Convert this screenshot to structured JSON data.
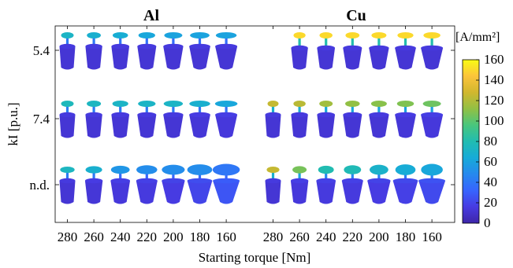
{
  "chart_data": {
    "type": "heatmap",
    "panels": [
      {
        "title": "Al",
        "x_ticks": [
          "280",
          "260",
          "240",
          "220",
          "200",
          "180",
          "160"
        ],
        "rows": [
          {
            "y_label": "5.4",
            "top_density": [
              72,
              68,
              66,
              62,
              60,
              60,
              60
            ],
            "bottom_density": [
              12,
              12,
              12,
              12,
              12,
              12,
              12
            ]
          },
          {
            "y_label": "7.4",
            "top_density": [
              76,
              74,
              72,
              72,
              72,
              68,
              62
            ],
            "bottom_density": [
              12,
              12,
              12,
              12,
              12,
              13,
              14
            ]
          },
          {
            "y_label": "n.d.",
            "top_density": [
              74,
              68,
              54,
              50,
              50,
              50,
              40
            ],
            "bottom_density": [
              12,
              13,
              14,
              15,
              16,
              20,
              26
            ]
          }
        ]
      },
      {
        "title": "Cu",
        "x_ticks": [
          "280",
          "260",
          "240",
          "220",
          "200",
          "180",
          "160"
        ],
        "rows": [
          {
            "y_label": "5.4",
            "top_density": [
              null,
              150,
              150,
              150,
              150,
              150,
              150
            ],
            "bottom_density": [
              null,
              12,
              12,
              12,
              12,
              12,
              12
            ]
          },
          {
            "y_label": "7.4",
            "top_density": [
              125,
              122,
              116,
              112,
              110,
              108,
              104
            ],
            "bottom_density": [
              12,
              12,
              12,
              12,
              12,
              13,
              14
            ]
          },
          {
            "y_label": "n.d.",
            "top_density": [
              125,
              106,
              80,
              78,
              70,
              65,
              62
            ],
            "bottom_density": [
              12,
              14,
              15,
              15,
              16,
              18,
              22
            ]
          }
        ]
      }
    ],
    "xlabel": "Starting torque [Nm]",
    "ylabel": "kI [p.u.]",
    "colorbar": {
      "label": "[A/mm²]",
      "min": 0,
      "max": 160,
      "ticks": [
        0,
        20,
        40,
        60,
        80,
        100,
        120,
        140,
        160
      ],
      "colormap": "parula"
    },
    "grid": false
  }
}
